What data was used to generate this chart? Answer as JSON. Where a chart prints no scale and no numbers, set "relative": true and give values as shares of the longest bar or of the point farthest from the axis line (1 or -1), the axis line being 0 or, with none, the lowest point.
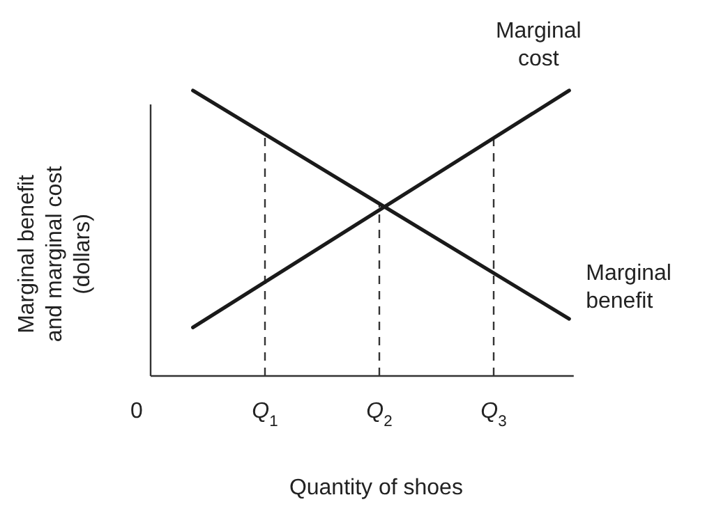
{
  "chart_data": {
    "type": "line",
    "relative": true,
    "xlabel": "Quantity of shoes",
    "ylabel": "Marginal benefit\nand marginal cost\n(dollars)",
    "xlim": [
      0,
      3.7
    ],
    "x": [
      0.37,
      3.66
    ],
    "legend": false,
    "grid": false,
    "xticks": [
      {
        "value": 0,
        "label": "0"
      },
      {
        "value": 1,
        "label": "Q$_{1}$"
      },
      {
        "value": 2,
        "label": "Q$_{2}$"
      },
      {
        "value": 3,
        "label": "Q$_{3}$"
      }
    ],
    "series": [
      {
        "name": "Marginal cost",
        "color": "#1a1a1a",
        "values": [
          0.17,
          1
        ]
      },
      {
        "name": "Marginal benefit",
        "color": "#1a1a1a",
        "values": [
          1,
          0.2
        ]
      }
    ],
    "ref_lines": [
      {
        "axis": "x",
        "value": 1,
        "line_style": "dashed"
      },
      {
        "axis": "x",
        "value": 2,
        "line_style": "dashed"
      },
      {
        "axis": "x",
        "value": 3,
        "line_style": "dashed"
      }
    ],
    "marker": "none",
    "line_style": "solid"
  }
}
